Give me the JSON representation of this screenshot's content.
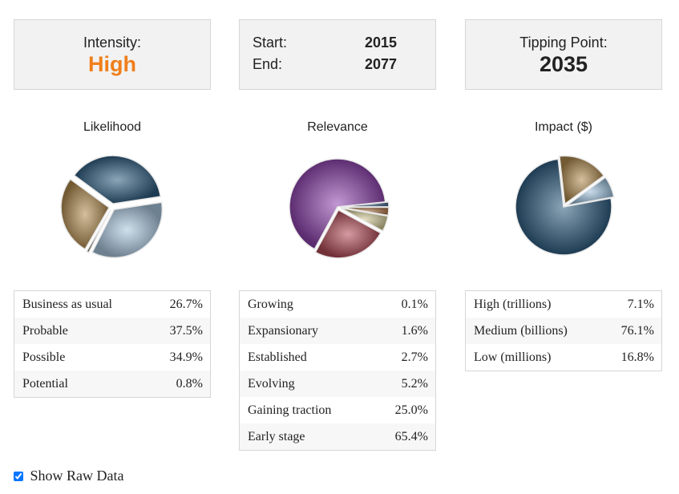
{
  "cards": {
    "intensity": {
      "label": "Intensity:",
      "value": "High",
      "value_color": "#f07f1b"
    },
    "timespan": {
      "start_label": "Start:",
      "start_value": "2015",
      "end_label": "End:",
      "end_value": "2077"
    },
    "tipping": {
      "label": "Tipping Point:",
      "value": "2035"
    }
  },
  "chart_data": [
    {
      "type": "pie",
      "title": "Likelihood",
      "labels": [
        "Business as usual",
        "Probable",
        "Possible",
        "Potential"
      ],
      "values": [
        26.7,
        37.5,
        34.9,
        0.8
      ],
      "display": [
        "26.7%",
        "37.5%",
        "34.9%",
        "0.8%"
      ],
      "colors": [
        "#b08a4e",
        "#2c5b7e",
        "#a9c6de",
        "#8e8370"
      ]
    },
    {
      "type": "pie",
      "title": "Relevance",
      "labels": [
        "Growing",
        "Expansionary",
        "Established",
        "Evolving",
        "Gaining traction",
        "Early stage"
      ],
      "values": [
        0.1,
        1.6,
        2.7,
        5.2,
        25.0,
        65.4
      ],
      "display": [
        "0.1%",
        "1.6%",
        "2.7%",
        "5.2%",
        "25.0%",
        "65.4%"
      ],
      "colors": [
        "#3b6d91",
        "#4a6a8c",
        "#b27a4e",
        "#d4cb98",
        "#b04a55",
        "#8e44ad"
      ]
    },
    {
      "type": "pie",
      "title": "Impact ($)",
      "labels": [
        "High (trillions)",
        "Medium (billions)",
        "Low (millions)"
      ],
      "values": [
        7.1,
        76.1,
        16.8
      ],
      "display": [
        "7.1%",
        "76.1%",
        "16.8%"
      ],
      "colors": [
        "#9cc0dc",
        "#2c5b7e",
        "#b08a4e"
      ]
    }
  ],
  "footer": {
    "show_raw_label": "Show Raw Data",
    "checked": true
  }
}
